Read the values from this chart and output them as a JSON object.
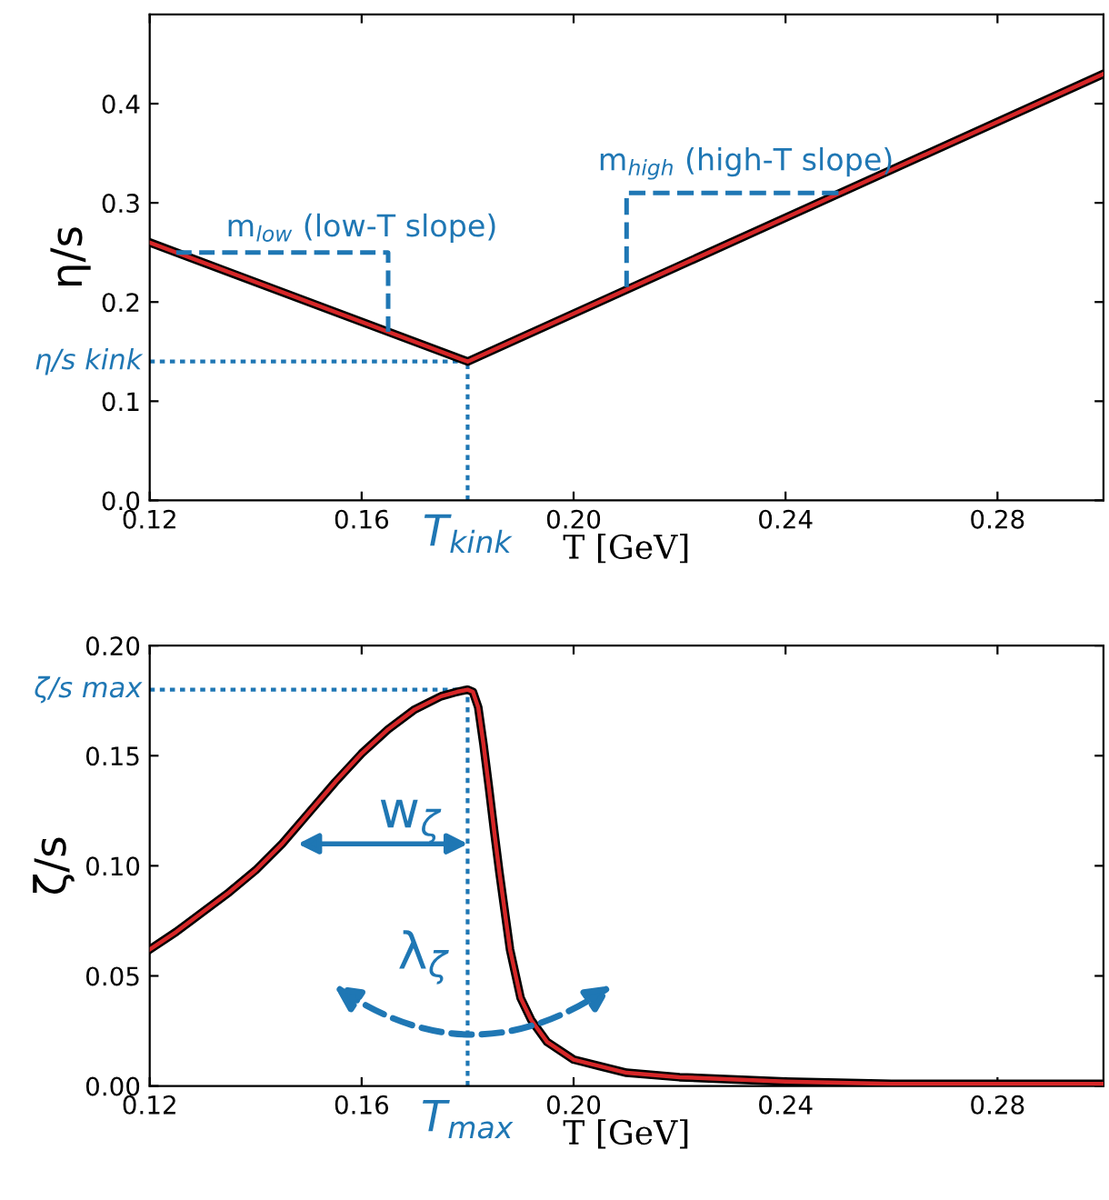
{
  "chart_data": [
    {
      "type": "line",
      "xlabel": "T [GeV]",
      "ylabel": "η/s",
      "xlim": [
        0.12,
        0.3
      ],
      "ylim": [
        0,
        0.49
      ],
      "xticks": [
        0.12,
        0.16,
        {
          "value": 0.2,
          "label": "0.20"
        },
        0.24,
        0.28
      ],
      "yticks": [
        {
          "value": 0,
          "label": "0.0"
        },
        0.1,
        0.2,
        0.3,
        0.4
      ],
      "grid": false,
      "legend": false,
      "ref_lines": [
        {
          "axis": "x",
          "value": 0.18,
          "label": "T$_{kink}$",
          "color": "#1f77b4",
          "line_style": "dotted"
        },
        {
          "axis": "y",
          "value": 0.14,
          "label": "η/s kink",
          "color": "#1f77b4",
          "line_style": "dotted"
        }
      ],
      "series": [
        {
          "x": [
            0.125,
            0.165,
            0.165
          ],
          "values": [
            0.25,
            0.25,
            0.17
          ],
          "color": "#1f77b4",
          "line_style": "dashed"
        },
        {
          "x": [
            0.21,
            0.21,
            0.25
          ],
          "values": [
            0.215,
            0.31,
            0.31
          ],
          "color": "#1f77b4",
          "line_style": "dashed"
        },
        {
          "x": [
            0.12,
            0.18,
            0.3
          ],
          "values": [
            0.26,
            0.14,
            0.43
          ],
          "color": "#d62728",
          "line_style": "solid"
        }
      ],
      "annotations": [
        "m$_{low}$ (low-T slope)",
        "m$_{high}$ (high-T slope)"
      ]
    },
    {
      "type": "line",
      "xlabel": "T [GeV]",
      "ylabel": "ζ/s",
      "xlim": [
        0.12,
        0.3
      ],
      "ylim": [
        0,
        0.2
      ],
      "xticks": [
        0.12,
        0.16,
        {
          "value": 0.2,
          "label": "0.20"
        },
        0.24,
        0.28
      ],
      "yticks": [
        {
          "value": 0,
          "label": "0.00"
        },
        0.05,
        {
          "value": 0.1,
          "label": "0.10"
        },
        0.15,
        {
          "value": 0.2,
          "label": "0.20"
        }
      ],
      "grid": false,
      "legend": false,
      "ref_lines": [
        {
          "axis": "x",
          "value": 0.18,
          "label": "T$_{max}$",
          "color": "#1f77b4",
          "line_style": "dotted"
        },
        {
          "axis": "y",
          "value": 0.18,
          "label": "ζ/s max",
          "color": "#1f77b4",
          "line_style": "dotted"
        }
      ],
      "series": [
        {
          "x": [
            0.12,
            0.125,
            0.13,
            0.135,
            0.14,
            0.145,
            0.15,
            0.155,
            0.16,
            0.165,
            0.17,
            0.175,
            0.178,
            0.18,
            0.181,
            0.182,
            0.183,
            0.184,
            0.185,
            0.186,
            0.188,
            0.19,
            0.192,
            0.195,
            0.2,
            0.205,
            0.21,
            0.22,
            0.24,
            0.26,
            0.28,
            0.3
          ],
          "values": [
            0.062,
            0.07,
            0.079,
            0.088,
            0.098,
            0.11,
            0.124,
            0.138,
            0.151,
            0.162,
            0.171,
            0.177,
            0.179,
            0.18,
            0.179,
            0.172,
            0.155,
            0.136,
            0.116,
            0.097,
            0.062,
            0.04,
            0.03,
            0.02,
            0.012,
            0.009,
            0.006,
            0.004,
            0.002,
            0.001,
            0.001,
            0.001
          ],
          "color": "#d62728",
          "line_style": "solid"
        }
      ],
      "annotations": [
        "w$_{ζ}$",
        "λ$_{ζ}$"
      ]
    }
  ]
}
